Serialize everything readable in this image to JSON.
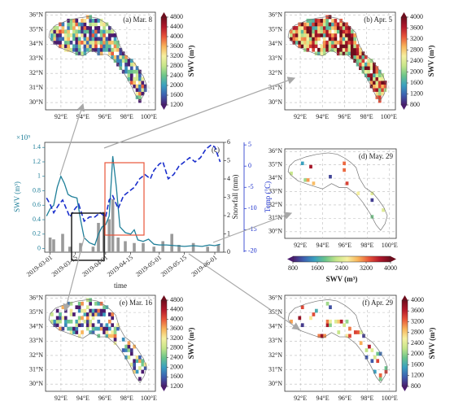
{
  "chart_data": {
    "type": "line",
    "label": "(c)",
    "xlabel": "time",
    "ylabel": "SWV (m³)",
    "yscale_label": "×10⁹",
    "y2label": "Snowfall (mm)",
    "y3label": "Temp (°C)",
    "xlim": [
      "2019-02-26",
      "2019-06-06"
    ],
    "xticks": [
      "2019-03-01",
      "2019-03-15",
      "2019-04-01",
      "2019-04-15",
      "2019-05-01",
      "2019-05-15",
      "2019-06-01"
    ],
    "ylim": [
      -0.05,
      1.47
    ],
    "yticks": [
      0,
      0.2,
      0.4,
      0.6,
      0.8,
      1,
      1.2,
      1.4
    ],
    "y2lim": [
      0,
      6
    ],
    "y2ticks": [
      0,
      1,
      2,
      3,
      4,
      5,
      6
    ],
    "y3lim": [
      -20.3,
      5.6
    ],
    "y3ticks": [
      -20,
      -15,
      -10,
      -5,
      0,
      5
    ],
    "series": [
      {
        "type": "bar",
        "axis": "y2",
        "color": "#9a9a9a",
        "x": [
          "2019-03-01",
          "2019-03-03",
          "2019-03-08",
          "2019-03-12",
          "2019-03-18",
          "2019-03-25",
          "2019-03-28",
          "2019-03-31",
          "2019-04-03",
          "2019-04-05",
          "2019-04-08",
          "2019-04-12",
          "2019-04-17",
          "2019-04-22",
          "2019-04-28",
          "2019-05-03",
          "2019-05-08",
          "2019-05-12",
          "2019-05-20",
          "2019-05-28",
          "2019-06-03"
        ],
        "values": [
          0.8,
          0.7,
          1.0,
          0.3,
          0.5,
          0.3,
          1.6,
          2.2,
          1.8,
          2.9,
          0.8,
          0.6,
          0.5,
          0.5,
          0.3,
          0.6,
          1.0,
          0.4,
          0.5,
          0.3,
          0.4
        ]
      },
      {
        "type": "line",
        "axis": "y",
        "color": "#1f7f99",
        "x": [
          "2019-02-27",
          "2019-03-01",
          "2019-03-03",
          "2019-03-05",
          "2019-03-07",
          "2019-03-09",
          "2019-03-11",
          "2019-03-13",
          "2019-03-16",
          "2019-03-18",
          "2019-03-20",
          "2019-03-23",
          "2019-03-26",
          "2019-03-28",
          "2019-03-30",
          "2019-04-01",
          "2019-04-03",
          "2019-04-05",
          "2019-04-07",
          "2019-04-09",
          "2019-04-12",
          "2019-04-15",
          "2019-04-17",
          "2019-04-19",
          "2019-04-22",
          "2019-04-25",
          "2019-04-28",
          "2019-05-01",
          "2019-05-05",
          "2019-05-10",
          "2019-05-15",
          "2019-05-20",
          "2019-05-25",
          "2019-05-29",
          "2019-06-01",
          "2019-06-04"
        ],
        "values": [
          0.45,
          0.55,
          0.6,
          0.85,
          1.0,
          0.9,
          0.75,
          0.72,
          0.7,
          0.4,
          0.15,
          0.08,
          0.05,
          0.2,
          0.3,
          0.33,
          0.45,
          1.28,
          0.85,
          0.3,
          0.22,
          0.2,
          0.26,
          0.12,
          0.1,
          0.13,
          0.06,
          0.05,
          0.05,
          0.04,
          0.03,
          0.04,
          0.03,
          0.05,
          0.04,
          0.06
        ]
      },
      {
        "type": "line",
        "axis": "y3",
        "color": "#1a2ecc",
        "dashed": true,
        "x": [
          "2019-02-27",
          "2019-03-01",
          "2019-03-03",
          "2019-03-06",
          "2019-03-08",
          "2019-03-10",
          "2019-03-12",
          "2019-03-15",
          "2019-03-17",
          "2019-03-20",
          "2019-03-23",
          "2019-03-26",
          "2019-03-29",
          "2019-04-01",
          "2019-04-03",
          "2019-04-05",
          "2019-04-08",
          "2019-04-11",
          "2019-04-14",
          "2019-04-17",
          "2019-04-20",
          "2019-04-23",
          "2019-04-26",
          "2019-04-28",
          "2019-05-01",
          "2019-05-03",
          "2019-05-06",
          "2019-05-09",
          "2019-05-12",
          "2019-05-15",
          "2019-05-18",
          "2019-05-21",
          "2019-05-24",
          "2019-05-27",
          "2019-05-30",
          "2019-06-01",
          "2019-06-04"
        ],
        "values": [
          -7.5,
          -9,
          -11,
          -9,
          -8,
          -10,
          -12,
          -10,
          -9,
          -13,
          -12,
          -12,
          -11,
          -12,
          -8,
          -7,
          -10,
          -7,
          -6,
          -5,
          -3,
          -2,
          -3,
          -1,
          0.5,
          1,
          -3,
          -2,
          0,
          1,
          2,
          1,
          2,
          4,
          5,
          4.5,
          1
        ]
      }
    ]
  },
  "maps": [
    {
      "label": "(a) Mar. 8",
      "xlim": [
        90.6,
        100.6
      ],
      "ylim": [
        29.5,
        36.2
      ],
      "xticks": [
        {
          "value": 92,
          "label": "92°E"
        },
        {
          "value": 94,
          "label": "94°E"
        },
        {
          "value": 96,
          "label": "96°E"
        },
        {
          "value": 98,
          "label": "98°E"
        },
        {
          "value": 100,
          "label": "100°E"
        }
      ],
      "yticks": [
        {
          "value": 36,
          "label": "36°N"
        },
        {
          "value": 35,
          "label": "35°N"
        },
        {
          "value": 34,
          "label": "34°N"
        },
        {
          "value": 33,
          "label": "33°N"
        },
        {
          "value": 32,
          "label": "32°N"
        },
        {
          "value": 31,
          "label": "31°N"
        },
        {
          "value": 30,
          "label": "30°N"
        }
      ],
      "colorbar": {
        "label": "SWV (m³)",
        "lim": [
          1200,
          4800
        ],
        "ticks": [
          1200,
          1600,
          2000,
          2400,
          2800,
          3200,
          3600,
          4000,
          4400,
          4800
        ]
      }
    },
    {
      "label": "(b) Apr. 5",
      "xlim": [
        90.6,
        100.6
      ],
      "ylim": [
        29.5,
        36.2
      ],
      "xticks": [
        {
          "value": 92,
          "label": "92°E"
        },
        {
          "value": 94,
          "label": "94°E"
        },
        {
          "value": 96,
          "label": "96°E"
        },
        {
          "value": 98,
          "label": "98°E"
        },
        {
          "value": 100,
          "label": "100°E"
        }
      ],
      "yticks": [
        {
          "value": 36,
          "label": "36°N"
        },
        {
          "value": 35,
          "label": "35°N"
        },
        {
          "value": 34,
          "label": "34°N"
        },
        {
          "value": 33,
          "label": "33°N"
        },
        {
          "value": 32,
          "label": "32°N"
        },
        {
          "value": 31,
          "label": "31°N"
        },
        {
          "value": 30,
          "label": "30°N"
        }
      ],
      "colorbar": {
        "label": "SWV (m³)",
        "lim": [
          800,
          4000
        ],
        "ticks": [
          800,
          1200,
          1600,
          2000,
          2400,
          2800,
          3200,
          3600,
          4000
        ]
      }
    },
    {
      "label": "(d) May. 29",
      "xlim": [
        90.6,
        100.6
      ],
      "ylim": [
        29.5,
        36.2
      ],
      "xticks": [
        {
          "value": 92,
          "label": "92°E"
        },
        {
          "value": 94,
          "label": "94°E"
        },
        {
          "value": 96,
          "label": "96°E"
        },
        {
          "value": 98,
          "label": "98°E"
        },
        {
          "value": 100,
          "label": "100°E"
        }
      ],
      "yticks": [
        {
          "value": 36,
          "label": "36°N"
        },
        {
          "value": 35,
          "label": "35°N"
        },
        {
          "value": 34,
          "label": "34°N"
        },
        {
          "value": 33,
          "label": "33°N"
        },
        {
          "value": 32,
          "label": "32°N"
        },
        {
          "value": 31,
          "label": "31°N"
        },
        {
          "value": 30,
          "label": "30°N"
        }
      ],
      "colorbar": {
        "label": "SWV (m³)",
        "lim": [
          800,
          4000
        ],
        "ticks": [
          800,
          1600,
          2400,
          3200,
          4000
        ],
        "horizontal": true
      }
    },
    {
      "label": "(e) Mar. 16",
      "xlim": [
        90.6,
        100.6
      ],
      "ylim": [
        29.5,
        36.2
      ],
      "xticks": [
        {
          "value": 92,
          "label": "92°E"
        },
        {
          "value": 94,
          "label": "94°E"
        },
        {
          "value": 96,
          "label": "96°E"
        },
        {
          "value": 98,
          "label": "98°E"
        },
        {
          "value": 100,
          "label": "100°E"
        }
      ],
      "yticks": [
        {
          "value": 36,
          "label": "36°N"
        },
        {
          "value": 35,
          "label": "35°N"
        },
        {
          "value": 34,
          "label": "34°N"
        },
        {
          "value": 33,
          "label": "33°N"
        },
        {
          "value": 32,
          "label": "32°N"
        },
        {
          "value": 31,
          "label": "31°N"
        },
        {
          "value": 30,
          "label": "30°N"
        }
      ],
      "colorbar": {
        "label": "SWV (m³)",
        "lim": [
          1200,
          4800
        ],
        "ticks": [
          1200,
          1600,
          2000,
          2400,
          2800,
          3200,
          3600,
          4000,
          4400,
          4800
        ]
      }
    },
    {
      "label": "(f) Apr. 29",
      "xlim": [
        90.6,
        100.6
      ],
      "ylim": [
        29.5,
        36.2
      ],
      "xticks": [
        {
          "value": 92,
          "label": "92°E"
        },
        {
          "value": 94,
          "label": "94°E"
        },
        {
          "value": 96,
          "label": "96°E"
        },
        {
          "value": 98,
          "label": "98°E"
        },
        {
          "value": 100,
          "label": "100°E"
        }
      ],
      "yticks": [
        {
          "value": 36,
          "label": "36°N"
        },
        {
          "value": 35,
          "label": "35°N"
        },
        {
          "value": 34,
          "label": "34°N"
        },
        {
          "value": 33,
          "label": "33°N"
        },
        {
          "value": 32,
          "label": "32°N"
        },
        {
          "value": 31,
          "label": "31°N"
        },
        {
          "value": 30,
          "label": "30°N"
        }
      ],
      "colorbar": {
        "label": "SWV (m³)",
        "lim": [
          800,
          4000
        ],
        "ticks": [
          800,
          1200,
          1600,
          2000,
          2400,
          2800,
          3200,
          3600,
          4000
        ]
      }
    }
  ]
}
